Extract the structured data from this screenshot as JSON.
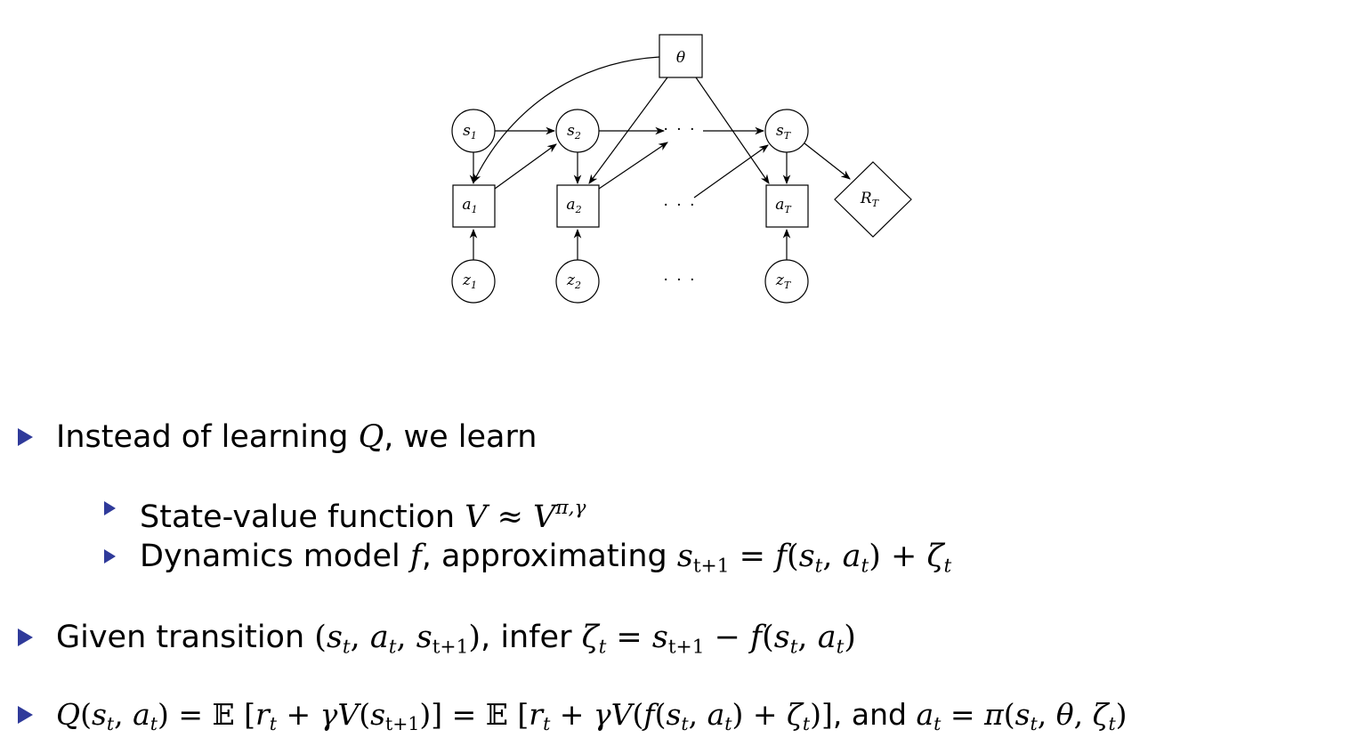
{
  "diagram": {
    "nodes": {
      "theta": "θ",
      "s1": "s",
      "s1_sub": "1",
      "s2": "s",
      "s2_sub": "2",
      "sT": "s",
      "sT_sub": "T",
      "a1": "a",
      "a1_sub": "1",
      "a2": "a",
      "a2_sub": "2",
      "aT": "a",
      "aT_sub": "T",
      "z1": "z",
      "z1_sub": "1",
      "z2": "z",
      "z2_sub": "2",
      "zT": "z",
      "zT_sub": "T",
      "RT": "R",
      "RT_sub": "T"
    },
    "ellipsis": "· · ·"
  },
  "bullets": {
    "b1_text": "Instead of learning ",
    "b1_Q": "Q",
    "b1_tail": ", we learn",
    "sb1_text": "State-value function ",
    "sb1_math": "V ≈ V",
    "sb1_sup": "π,γ",
    "sb2_text": "Dynamics model ",
    "sb2_f": "f",
    "sb2_mid": ", approximating ",
    "sb2_math": "s",
    "b3_text": "Given transition ",
    "b3_mid": ", infer ",
    "b4_mid": ", and "
  },
  "colors": {
    "bullet": "#2f3a9a"
  }
}
